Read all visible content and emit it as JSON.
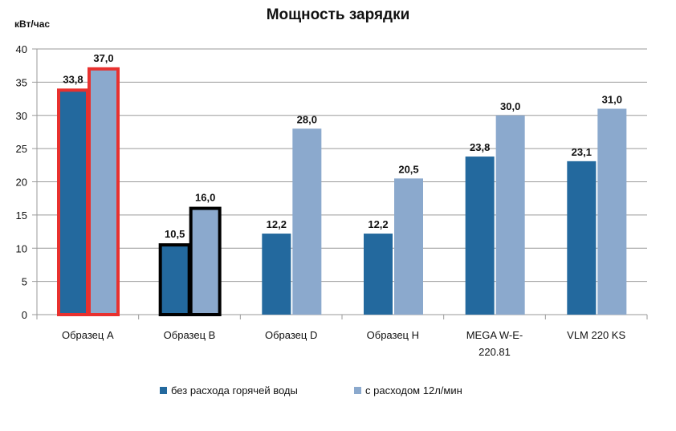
{
  "chart_data": {
    "type": "bar",
    "title": "Мощность зарядки",
    "ylabel": "кВт/час",
    "xlabel": "",
    "ylim": [
      0,
      40
    ],
    "yticks": [
      0,
      5,
      10,
      15,
      20,
      25,
      30,
      35,
      40
    ],
    "grid": true,
    "legend_position": "bottom",
    "categories": [
      "Образец A",
      "Образец B",
      "Образец D",
      "Образец H",
      "MEGA W-E-\n220.81",
      "VLM 220 KS"
    ],
    "series": [
      {
        "name": "без расхода горячей воды",
        "color": "#23699e",
        "values": [
          33.8,
          10.5,
          12.2,
          12.2,
          23.8,
          23.1
        ],
        "labels": [
          "33,8",
          "10,5",
          "12,2",
          "12,2",
          "23,8",
          "23,1"
        ]
      },
      {
        "name": "с  расходом 12л/мин",
        "color": "#8ba9cd",
        "values": [
          37.0,
          16.0,
          28.0,
          20.5,
          30.0,
          31.0
        ],
        "labels": [
          "37,0",
          "16,0",
          "28,0",
          "20,5",
          "30,0",
          "31,0"
        ]
      }
    ],
    "highlights": [
      {
        "category": "Образец A",
        "outline_color": "#e8312f"
      },
      {
        "category": "Образец B",
        "outline_color": "#000000"
      }
    ]
  }
}
